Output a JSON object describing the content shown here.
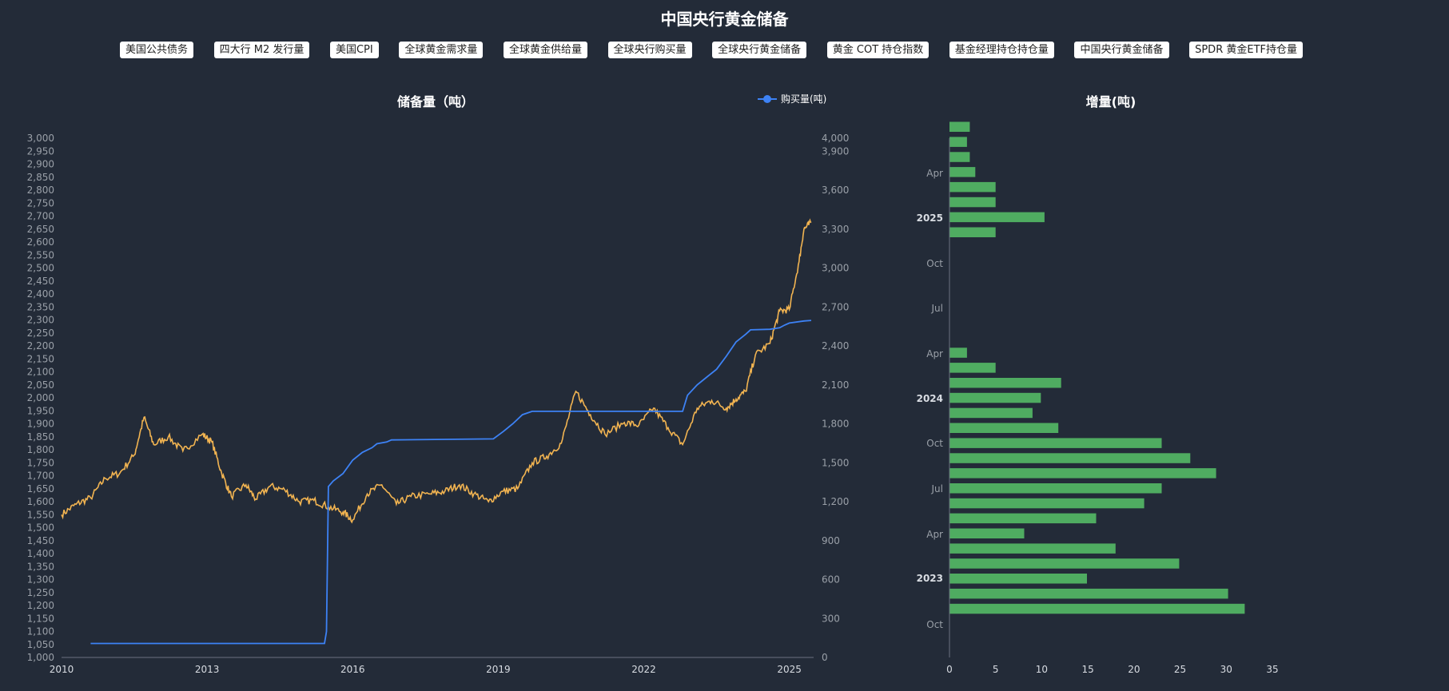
{
  "page": {
    "title": "中国央行黄金储备"
  },
  "nav": {
    "buttons": [
      "美国公共债务",
      "四大行 M2 发行量",
      "美国CPI",
      "全球黄金需求量",
      "全球黄金供给量",
      "全球央行购买量",
      "全球央行黄金储备",
      "黄金 COT 持仓指数",
      "基金经理持仓持仓量",
      "中国央行黄金储备",
      "SPDR 黄金ETF持仓量"
    ]
  },
  "colors": {
    "background": "#232b38",
    "reserve_line": "#3d82f5",
    "gold_price_line": "#f2b451",
    "bar": "#4fac61",
    "axis": "#6b7280"
  },
  "chart_data": [
    {
      "type": "line",
      "title": "储备量（吨）",
      "legend": {
        "label": "购买量(吨)",
        "placement": "top-right"
      },
      "x_ticks": [
        "2010",
        "2013",
        "2016",
        "2019",
        "2022",
        "2025"
      ],
      "x_range": [
        2010,
        2025.5
      ],
      "y_left": {
        "range": [
          1000,
          3000
        ],
        "step": 50,
        "ticks": [
          "1,000",
          "1,050",
          "1,100",
          "1,150",
          "1,200",
          "1,250",
          "1,300",
          "1,350",
          "1,400",
          "1,450",
          "1,500",
          "1,550",
          "1,600",
          "1,650",
          "1,700",
          "1,750",
          "1,800",
          "1,850",
          "1,900",
          "1,950",
          "2,000",
          "2,050",
          "2,100",
          "2,150",
          "2,200",
          "2,250",
          "2,300",
          "2,350",
          "2,400",
          "2,450",
          "2,500",
          "2,550",
          "2,600",
          "2,650",
          "2,700",
          "2,750",
          "2,800",
          "2,850",
          "2,900",
          "2,950",
          "3,000"
        ]
      },
      "y_right": {
        "range": [
          0,
          4000
        ],
        "ticks": [
          "0",
          "300",
          "600",
          "900",
          "1,200",
          "1,500",
          "1,800",
          "2,100",
          "2,400",
          "2,700",
          "3,000",
          "3,300",
          "3,600",
          "3,900",
          "4,000"
        ],
        "tick_values": [
          0,
          300,
          600,
          900,
          1200,
          1500,
          1800,
          2100,
          2400,
          2700,
          3000,
          3300,
          3600,
          3900,
          4000
        ]
      },
      "series": [
        {
          "name": "购买量(吨)",
          "axis": "left",
          "points": [
            [
              2010.6,
              1054
            ],
            [
              2015.42,
              1054
            ],
            [
              2015.46,
              1100
            ],
            [
              2015.5,
              1658
            ],
            [
              2015.6,
              1680
            ],
            [
              2015.8,
              1708
            ],
            [
              2016.0,
              1760
            ],
            [
              2016.2,
              1790
            ],
            [
              2016.4,
              1808
            ],
            [
              2016.5,
              1823
            ],
            [
              2016.7,
              1830
            ],
            [
              2016.8,
              1838
            ],
            [
              2018.9,
              1842
            ],
            [
              2019.1,
              1870
            ],
            [
              2019.3,
              1900
            ],
            [
              2019.5,
              1935
            ],
            [
              2019.7,
              1948
            ],
            [
              2020.0,
              1948
            ],
            [
              2022.8,
              1948
            ],
            [
              2022.9,
              2010
            ],
            [
              2023.1,
              2050
            ],
            [
              2023.3,
              2080
            ],
            [
              2023.5,
              2110
            ],
            [
              2023.7,
              2160
            ],
            [
              2023.9,
              2215
            ],
            [
              2024.1,
              2245
            ],
            [
              2024.2,
              2262
            ],
            [
              2024.6,
              2264
            ],
            [
              2024.8,
              2270
            ],
            [
              2024.9,
              2280
            ],
            [
              2025.0,
              2288
            ],
            [
              2025.3,
              2296
            ],
            [
              2025.45,
              2298
            ]
          ]
        },
        {
          "name": "gold-price",
          "axis": "right",
          "points": [
            [
              2010.0,
              1100
            ],
            [
              2010.3,
              1180
            ],
            [
              2010.6,
              1230
            ],
            [
              2010.9,
              1380
            ],
            [
              2011.2,
              1420
            ],
            [
              2011.5,
              1560
            ],
            [
              2011.7,
              1850
            ],
            [
              2011.9,
              1640
            ],
            [
              2012.2,
              1700
            ],
            [
              2012.5,
              1590
            ],
            [
              2012.9,
              1720
            ],
            [
              2013.1,
              1660
            ],
            [
              2013.3,
              1420
            ],
            [
              2013.5,
              1240
            ],
            [
              2013.8,
              1330
            ],
            [
              2014.0,
              1220
            ],
            [
              2014.3,
              1320
            ],
            [
              2014.6,
              1290
            ],
            [
              2014.9,
              1200
            ],
            [
              2015.2,
              1210
            ],
            [
              2015.5,
              1160
            ],
            [
              2015.8,
              1120
            ],
            [
              2016.0,
              1060
            ],
            [
              2016.3,
              1260
            ],
            [
              2016.6,
              1330
            ],
            [
              2016.9,
              1180
            ],
            [
              2017.2,
              1240
            ],
            [
              2017.6,
              1260
            ],
            [
              2017.9,
              1280
            ],
            [
              2018.2,
              1330
            ],
            [
              2018.5,
              1260
            ],
            [
              2018.8,
              1200
            ],
            [
              2019.1,
              1280
            ],
            [
              2019.4,
              1300
            ],
            [
              2019.7,
              1500
            ],
            [
              2020.0,
              1550
            ],
            [
              2020.3,
              1650
            ],
            [
              2020.6,
              2050
            ],
            [
              2020.9,
              1870
            ],
            [
              2021.2,
              1720
            ],
            [
              2021.6,
              1810
            ],
            [
              2021.9,
              1790
            ],
            [
              2022.2,
              1920
            ],
            [
              2022.5,
              1770
            ],
            [
              2022.8,
              1640
            ],
            [
              2023.1,
              1920
            ],
            [
              2023.4,
              1980
            ],
            [
              2023.7,
              1920
            ],
            [
              2023.9,
              1990
            ],
            [
              2024.1,
              2050
            ],
            [
              2024.3,
              2330
            ],
            [
              2024.6,
              2420
            ],
            [
              2024.8,
              2670
            ],
            [
              2025.0,
              2680
            ],
            [
              2025.2,
              3050
            ],
            [
              2025.3,
              3300
            ],
            [
              2025.45,
              3350
            ]
          ]
        }
      ]
    },
    {
      "type": "bar",
      "orientation": "horizontal",
      "title": "增量(吨)",
      "x_range": [
        0,
        35
      ],
      "x_ticks": [
        "0",
        "5",
        "10",
        "15",
        "20",
        "25",
        "30",
        "35"
      ],
      "y_labels": [
        {
          "label": "Oct",
          "bold": false
        },
        {
          "label": "2023",
          "bold": true
        },
        {
          "label": "Apr",
          "bold": false
        },
        {
          "label": "Jul",
          "bold": false
        },
        {
          "label": "Oct",
          "bold": false
        },
        {
          "label": "2024",
          "bold": true
        },
        {
          "label": "Apr",
          "bold": false
        },
        {
          "label": "Jul",
          "bold": false
        },
        {
          "label": "Oct",
          "bold": false
        },
        {
          "label": "2025",
          "bold": true
        },
        {
          "label": "Apr",
          "bold": false
        }
      ],
      "values": [
        32,
        30.2,
        14.9,
        24.9,
        18,
        8.1,
        15.9,
        21.1,
        23,
        28.9,
        26.1,
        23,
        11.8,
        9,
        9.9,
        12.1,
        5,
        1.9,
        0,
        0,
        0,
        0,
        0,
        0,
        0,
        5,
        10.3,
        5,
        5,
        2.8,
        2.2,
        1.9,
        2.2
      ]
    }
  ]
}
